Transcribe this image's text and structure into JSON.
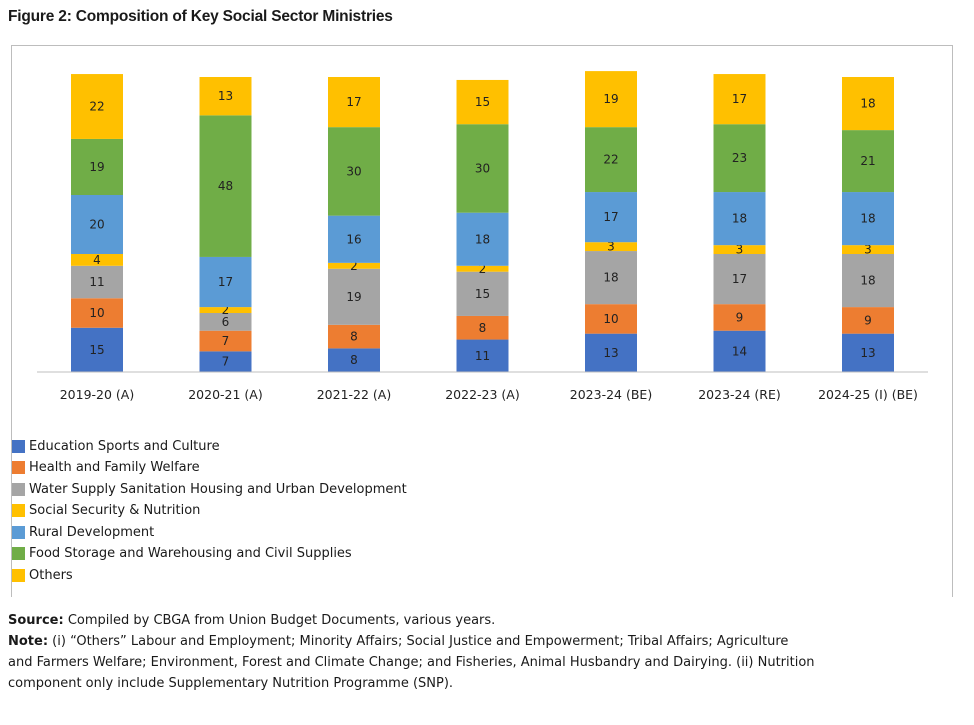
{
  "figure_title": "Figure 2:  Composition of Key Social Sector Ministries",
  "chart_data": {
    "type": "bar",
    "stacked": true,
    "categories": [
      "2019-20 (A)",
      "2020-21 (A)",
      "2021-22 (A)",
      "2022-23 (A)",
      "2023-24 (BE)",
      "2023-24 (RE)",
      "2024-25 (I) (BE)"
    ],
    "series": [
      {
        "name": "Education Sports and Culture",
        "color": "#4472C4",
        "values": [
          15,
          7,
          8,
          11,
          13,
          14,
          13
        ]
      },
      {
        "name": "Health and Family Welfare",
        "color": "#ED7D31",
        "values": [
          10,
          7,
          8,
          8,
          10,
          9,
          9
        ]
      },
      {
        "name": "Water Supply Sanitation Housing and Urban Development",
        "color": "#A5A5A5",
        "values": [
          11,
          6,
          19,
          15,
          18,
          17,
          18
        ]
      },
      {
        "name": "Social Security & Nutrition",
        "color": "#FFC000",
        "values": [
          4,
          2,
          2,
          2,
          3,
          3,
          3
        ]
      },
      {
        "name": "Rural Development",
        "color": "#5B9BD5",
        "values": [
          20,
          17,
          16,
          18,
          17,
          18,
          18
        ]
      },
      {
        "name": "Food Storage and Warehousing and Civil Supplies",
        "color": "#70AD47",
        "values": [
          19,
          48,
          30,
          30,
          22,
          23,
          21
        ]
      },
      {
        "name": "Others",
        "color": "#FFC000",
        "values": [
          22,
          13,
          17,
          15,
          19,
          17,
          18
        ]
      }
    ],
    "ylim": [
      0,
      100
    ],
    "grid": false,
    "legend_position": "bottom-left"
  },
  "notes": {
    "source_label": "Source:",
    "source_text": " Compiled by CBGA from Union Budget Documents, various years.",
    "note_label": "Note:",
    "note_line1": " (i) “Others” Labour and Employment; Minority Affairs; Social Justice and Empowerment; Tribal Affairs; Agriculture",
    "note_line2": "and Farmers Welfare; Environment, Forest and Climate Change; and Fisheries, Animal Husbandry and Dairying. (ii) Nutrition",
    "note_line3": "component only include Supplementary Nutrition Programme (SNP)."
  }
}
